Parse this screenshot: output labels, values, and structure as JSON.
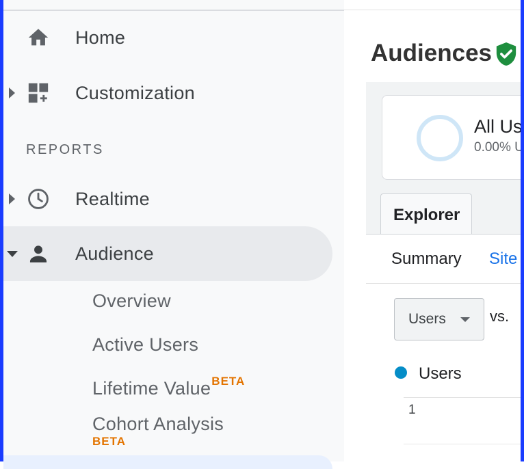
{
  "sidebar": {
    "home_label": "Home",
    "customization_label": "Customization",
    "reports_section": "REPORTS",
    "realtime_label": "Realtime",
    "audience_label": "Audience",
    "audience_items": {
      "overview": "Overview",
      "active_users": "Active Users",
      "lifetime_value": "Lifetime Value",
      "cohort_analysis": "Cohort Analysis"
    },
    "beta_badge": "BETA"
  },
  "main": {
    "title": "Audiences",
    "segment": {
      "name": "All Us",
      "percent": "0.00% U"
    },
    "tab_explorer": "Explorer",
    "subtabs": {
      "summary": "Summary",
      "site": "Site"
    },
    "metric_select": "Users",
    "vs_label": "vs.",
    "legend_label": "Users",
    "chart_tick": "1"
  },
  "colors": {
    "accent_blue": "#1a73e8",
    "series_blue": "#058dc7",
    "beta_orange": "#e37400",
    "verified_green": "#1e8e3e",
    "frame_blue": "#1a3cff"
  },
  "icons": [
    "home-icon",
    "customization-icon",
    "clock-icon",
    "person-icon",
    "verified-shield-icon",
    "dropdown-arrow-icon"
  ]
}
